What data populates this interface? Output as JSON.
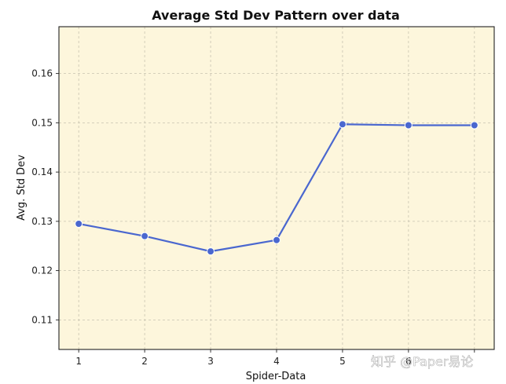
{
  "chart_data": {
    "type": "line",
    "title": "Average Std Dev Pattern over data",
    "xlabel": "Spider-Data",
    "ylabel": "Avg. Std Dev",
    "x": [
      1,
      2,
      3,
      4,
      5,
      6,
      7
    ],
    "x_tick_labels": [
      "1",
      "2",
      "3",
      "4",
      "5",
      "6"
    ],
    "series": [
      {
        "name": "Avg. Std Dev",
        "values": [
          0.1295,
          0.127,
          0.1239,
          0.1262,
          0.1497,
          0.1495,
          0.1495
        ]
      }
    ],
    "xlim": [
      0.7,
      7.3
    ],
    "ylim": [
      0.104,
      0.1695
    ],
    "y_ticks": [
      0.11,
      0.12,
      0.13,
      0.14,
      0.15,
      0.16
    ],
    "y_tick_labels": [
      "0.11",
      "0.12",
      "0.13",
      "0.14",
      "0.15",
      "0.16"
    ],
    "grid": true,
    "colors": {
      "background": "#fdf6dc",
      "line": "#4a67cf",
      "marker": "#4a67cf",
      "grid": "#c8c3b0"
    }
  },
  "watermark": {
    "text": "知乎 @Paper易论"
  }
}
